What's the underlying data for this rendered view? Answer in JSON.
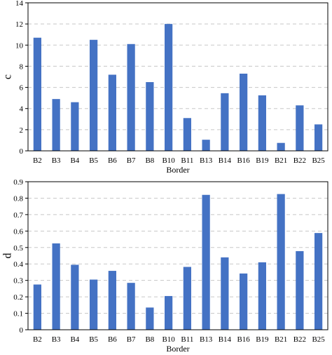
{
  "chart_data": [
    {
      "type": "bar",
      "title": "",
      "xlabel": "Border",
      "ylabel": "c",
      "categories": [
        "B2",
        "B3",
        "B4",
        "B5",
        "B6",
        "B7",
        "B8",
        "B10",
        "B11",
        "B13",
        "B14",
        "B16",
        "B19",
        "B21",
        "B22",
        "B25"
      ],
      "values": [
        10.7,
        4.9,
        4.6,
        10.5,
        7.2,
        10.1,
        6.5,
        12.0,
        3.1,
        1.05,
        5.45,
        7.3,
        5.25,
        0.75,
        4.3,
        2.5
      ],
      "ylim": [
        0,
        14
      ],
      "yticks": [
        "0",
        "2",
        "4",
        "6",
        "8",
        "10",
        "12",
        "14"
      ],
      "grid": true,
      "legend": "none",
      "bar_color": "#4472c4"
    },
    {
      "type": "bar",
      "title": "",
      "xlabel": "Border",
      "ylabel": "d",
      "categories": [
        "B2",
        "B3",
        "B4",
        "B5",
        "B6",
        "B7",
        "B8",
        "B10",
        "B11",
        "B13",
        "B14",
        "B16",
        "B19",
        "B21",
        "B22",
        "B25"
      ],
      "values": [
        0.275,
        0.525,
        0.395,
        0.305,
        0.358,
        0.285,
        0.135,
        0.205,
        0.382,
        0.82,
        0.44,
        0.342,
        0.41,
        0.825,
        0.478,
        0.588
      ],
      "ylim": [
        0,
        0.9
      ],
      "yticks": [
        "0",
        "0.1",
        "0.2",
        "0.3",
        "0.4",
        "0.5",
        "0.6",
        "0.7",
        "0.8",
        "0.9"
      ],
      "grid": true,
      "legend": "none",
      "bar_color": "#4472c4"
    }
  ]
}
